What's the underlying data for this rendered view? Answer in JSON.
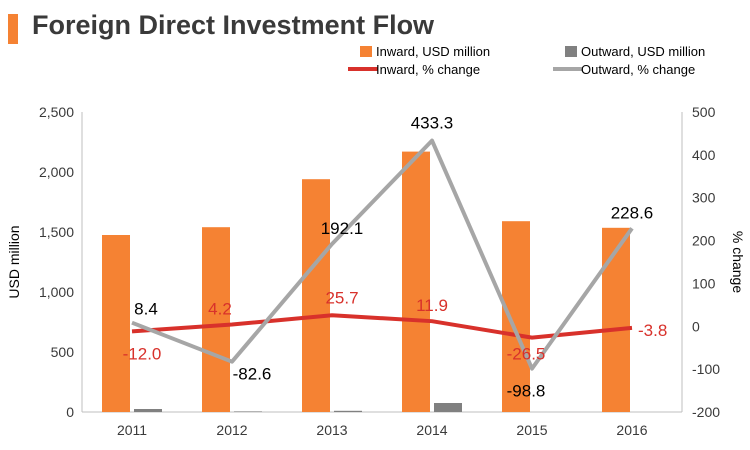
{
  "chart_data": {
    "type": "bar+line",
    "title": "Foreign Direct Investment Flow",
    "categories": [
      "2011",
      "2012",
      "2013",
      "2014",
      "2015",
      "2016"
    ],
    "left_axis": {
      "label": "USD million",
      "ylim": [
        0,
        2500
      ],
      "ticks": [
        "0",
        "500",
        "1,000",
        "1,500",
        "2,000",
        "2,500"
      ],
      "tick_values": [
        0,
        500,
        1000,
        1500,
        2000,
        2500
      ]
    },
    "right_axis": {
      "label": "% change",
      "ylim": [
        -200,
        500
      ],
      "ticks": [
        "-200",
        "-100",
        "0",
        "100",
        "200",
        "300",
        "400",
        "500"
      ],
      "tick_values": [
        -200,
        -100,
        0,
        100,
        200,
        300,
        400,
        500
      ]
    },
    "series": [
      {
        "name": "Inward, USD million",
        "kind": "bar",
        "axis": "left",
        "color": "#f58233",
        "values": [
          1475,
          1540,
          1940,
          2170,
          1590,
          1535
        ]
      },
      {
        "name": "Outward, USD million",
        "kind": "bar",
        "axis": "left",
        "color": "#808080",
        "values": [
          25,
          5,
          10,
          75,
          0,
          0
        ]
      },
      {
        "name": "Inward, % change",
        "kind": "line",
        "axis": "right",
        "color": "#d8312b",
        "values": [
          -12.0,
          4.2,
          25.7,
          11.9,
          -26.5,
          -3.8
        ],
        "labels": [
          "-12.0",
          "4.2",
          "25.7",
          "11.9",
          "-26.5",
          "-3.8"
        ]
      },
      {
        "name": "Outward, % change",
        "kind": "line",
        "axis": "right",
        "color": "#a6a6a6",
        "values": [
          8.4,
          -82.6,
          192.1,
          433.3,
          -98.8,
          228.6
        ],
        "labels": [
          "8.4",
          "-82.6",
          "192.1",
          "433.3",
          "-98.8",
          "228.6"
        ]
      }
    ],
    "legend_position": "top"
  }
}
